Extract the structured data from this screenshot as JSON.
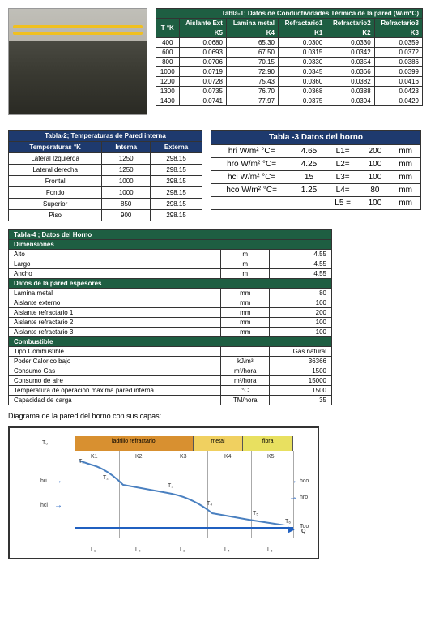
{
  "table1": {
    "title": "Tabla-1;  Datos de Conductividades Térmica de la pared (W/m*C)",
    "header_row1": [
      "T °K",
      "Aislante Ext",
      "Lamina metal",
      "Refractario1",
      "Refractario2",
      "Refractario3"
    ],
    "header_row2": [
      "",
      "K5",
      "K4",
      "K1",
      "K2",
      "K3"
    ],
    "rows": [
      [
        "400",
        "0.0680",
        "65.30",
        "0.0300",
        "0.0330",
        "0.0359"
      ],
      [
        "600",
        "0.0693",
        "67.50",
        "0.0315",
        "0.0342",
        "0.0372"
      ],
      [
        "800",
        "0.0706",
        "70.15",
        "0.0330",
        "0.0354",
        "0.0386"
      ],
      [
        "1000",
        "0.0719",
        "72.90",
        "0.0345",
        "0.0366",
        "0.0399"
      ],
      [
        "1200",
        "0.0728",
        "75.43",
        "0.0360",
        "0.0382",
        "0.0416"
      ],
      [
        "1300",
        "0.0735",
        "76.70",
        "0.0368",
        "0.0388",
        "0.0423"
      ],
      [
        "1400",
        "0.0741",
        "77.97",
        "0.0375",
        "0.0394",
        "0.0429"
      ]
    ]
  },
  "table2": {
    "title": "Tabla-2; Temperaturas de Pared interna",
    "header": [
      "Temperaturas °K",
      "Interna",
      "Externa"
    ],
    "rows": [
      [
        "Lateral Izquierda",
        "1250",
        "298.15"
      ],
      [
        "Lateral derecha",
        "1250",
        "298.15"
      ],
      [
        "Frontal",
        "1000",
        "298.15"
      ],
      [
        "Fondo",
        "1000",
        "298.15"
      ],
      [
        "Superior",
        "850",
        "298.15"
      ],
      [
        "Piso",
        "900",
        "298.15"
      ]
    ]
  },
  "table3": {
    "title": "Tabla -3 Datos del horno",
    "rows": [
      [
        "hri  W/m² °C=",
        "4.65",
        "L1=",
        "200",
        "mm"
      ],
      [
        "hro  W/m² °C=",
        "4.25",
        "L2=",
        "100",
        "mm"
      ],
      [
        "hci  W/m² °C=",
        "15",
        "L3=",
        "100",
        "mm"
      ],
      [
        "hco  W/m² °C=",
        "1.25",
        "L4=",
        "80",
        "mm"
      ],
      [
        "",
        "",
        "L5 =",
        "100",
        "mm"
      ]
    ]
  },
  "table4": {
    "title": "Tabla-4 ; Datos del Horno",
    "sections": {
      "dim_hdr": "Dimensiones",
      "dim_rows": [
        [
          "Alto",
          "m",
          "4.55"
        ],
        [
          "Largo",
          "m",
          "4.55"
        ],
        [
          "Ancho",
          "m",
          "4.55"
        ]
      ],
      "esp_hdr": "Datos de la pared espesores",
      "esp_rows": [
        [
          "Lamina metal",
          "mm",
          "80"
        ],
        [
          "Aislante externo",
          "mm",
          "100"
        ],
        [
          "Aislante refractario 1",
          "mm",
          "200"
        ],
        [
          "Aislante refractario 2",
          "mm",
          "100"
        ],
        [
          "Aislante refractario 3",
          "mm",
          "100"
        ]
      ],
      "comb_hdr": "Combustible",
      "comb_rows": [
        [
          "Tipo Combustible",
          "",
          "Gas natural"
        ],
        [
          "Poder Calorico bajo",
          "kJ/m³",
          "36366"
        ],
        [
          "Consumo Gas",
          "m³/hora",
          "1500"
        ],
        [
          "Consumo de aire",
          "m³/hora",
          "15000"
        ],
        [
          "Temperatura de operación maxima pared interna",
          "°C",
          "1500"
        ],
        [
          "Capacidad de carga",
          "TM/hora",
          "35"
        ]
      ]
    }
  },
  "caption": "Diagrama de la pared del horno con sus capas:",
  "diagram": {
    "bands": [
      "ladrillo refractario",
      "metal",
      "fibra"
    ],
    "k_labels": [
      "K1",
      "K2",
      "K3",
      "K4",
      "K5"
    ],
    "t_labels": [
      "T₀",
      "T₁",
      "T₂",
      "T₃",
      "T₄",
      "T₅",
      "T₆",
      "Too"
    ],
    "side_labels": [
      "hri",
      "hci",
      "hco",
      "hro"
    ],
    "q": "Q",
    "l_labels": [
      "L₁",
      "L₂",
      "L₃",
      "L₄",
      "L₅"
    ],
    "colors": {
      "refractario": "#d89030",
      "metal": "#f0d060",
      "fibra": "#e8e060",
      "curve": "#4a80c0",
      "arrow": "#2060c0"
    }
  }
}
